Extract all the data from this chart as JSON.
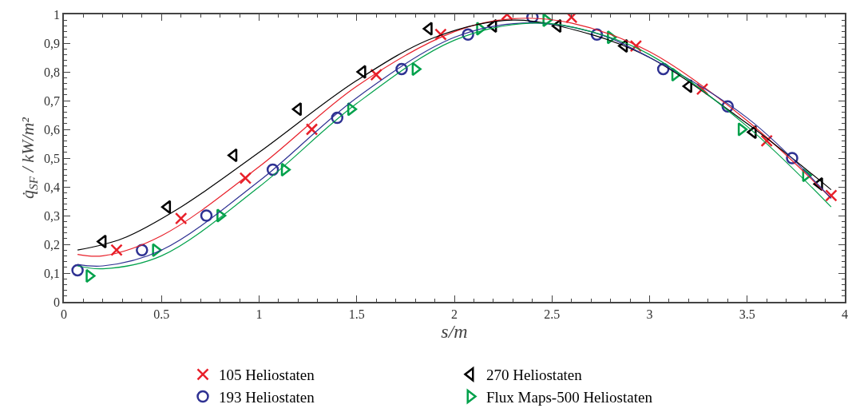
{
  "chart_data": {
    "type": "scatter",
    "xlabel": "s/m",
    "ylabel": "q̇$_{SF}$ / kW/m²",
    "xlim": [
      0,
      4
    ],
    "xticks": [
      0,
      0.5,
      1,
      1.5,
      2,
      2.5,
      3,
      3.5,
      4
    ],
    "ylim": [
      0,
      1
    ],
    "yticks": [
      0,
      {
        "value": 0.1,
        "label": "0,1"
      },
      {
        "value": 0.2,
        "label": "0,2"
      },
      {
        "value": 0.3,
        "label": "0,3"
      },
      {
        "value": 0.4,
        "label": "0,4"
      },
      {
        "value": 0.5,
        "label": "0,5"
      },
      {
        "value": 0.6,
        "label": "0,6"
      },
      {
        "value": 0.7,
        "label": "0,7"
      },
      {
        "value": 0.8,
        "label": "0,8"
      },
      {
        "value": 0.9,
        "label": "0,9"
      },
      1
    ],
    "legend": "bottom",
    "series": [
      {
        "name": "105 Heliostaten",
        "color": "#e8202a",
        "marker": "cross",
        "x": [
          0.27,
          0.6,
          0.93,
          1.27,
          1.6,
          1.93,
          2.27,
          2.6,
          2.93,
          3.27,
          3.6,
          3.93
        ],
        "values": [
          0.18,
          0.29,
          0.43,
          0.6,
          0.79,
          0.93,
          1.0,
          0.99,
          0.89,
          0.74,
          0.56,
          0.37
        ]
      },
      {
        "name": "270 Heliostaten",
        "color": "#000000",
        "marker": "triangle-left",
        "x": [
          0.2,
          0.53,
          0.87,
          1.2,
          1.53,
          1.87,
          2.2,
          2.53,
          2.87,
          3.2,
          3.53,
          3.87
        ],
        "values": [
          0.21,
          0.33,
          0.51,
          0.67,
          0.8,
          0.95,
          0.96,
          0.96,
          0.89,
          0.75,
          0.59,
          0.41
        ]
      },
      {
        "name": "193 Heliostaten",
        "color": "#2e3192",
        "marker": "circle",
        "x": [
          0.07,
          0.4,
          0.73,
          1.07,
          1.4,
          1.73,
          2.07,
          2.4,
          2.73,
          3.07,
          3.4,
          3.73
        ],
        "values": [
          0.11,
          0.18,
          0.3,
          0.46,
          0.64,
          0.81,
          0.93,
          0.99,
          0.93,
          0.81,
          0.68,
          0.5
        ]
      },
      {
        "name": "Flux Maps-500 Heliostaten",
        "color": "#00a14b",
        "marker": "triangle-right",
        "x": [
          0.13,
          0.47,
          0.8,
          1.13,
          1.47,
          1.8,
          2.13,
          2.47,
          2.8,
          3.13,
          3.47,
          3.8
        ],
        "values": [
          0.09,
          0.18,
          0.3,
          0.46,
          0.67,
          0.81,
          0.95,
          0.98,
          0.92,
          0.79,
          0.6,
          0.44
        ]
      },
      {
        "type": "line",
        "color": "#e8202a",
        "marker": "none",
        "x": [
          0.07,
          0.2,
          0.5,
          1,
          1.5,
          2,
          2.3,
          2.6,
          3,
          3.5,
          3.93
        ],
        "values": [
          0.165,
          0.16,
          0.23,
          0.47,
          0.75,
          0.94,
          0.985,
          0.97,
          0.87,
          0.63,
          0.36
        ]
      },
      {
        "type": "line",
        "color": "#000000",
        "marker": "none",
        "x": [
          0.07,
          0.3,
          0.6,
          1,
          1.5,
          1.9,
          2.3,
          2.7,
          3,
          3.5,
          3.93
        ],
        "values": [
          0.18,
          0.22,
          0.33,
          0.52,
          0.77,
          0.92,
          0.98,
          0.93,
          0.85,
          0.62,
          0.39
        ]
      },
      {
        "type": "line",
        "color": "#2e3192",
        "marker": "none",
        "x": [
          0.07,
          0.2,
          0.5,
          1,
          1.5,
          2,
          2.35,
          2.7,
          3,
          3.5,
          3.93
        ],
        "values": [
          0.13,
          0.125,
          0.18,
          0.42,
          0.71,
          0.92,
          0.97,
          0.94,
          0.85,
          0.64,
          0.36
        ]
      },
      {
        "type": "line",
        "color": "#00a14b",
        "marker": "none",
        "x": [
          0.07,
          0.2,
          0.5,
          1,
          1.5,
          2,
          2.4,
          2.7,
          3,
          3.5,
          3.93
        ],
        "values": [
          0.125,
          0.115,
          0.16,
          0.4,
          0.69,
          0.91,
          0.97,
          0.94,
          0.86,
          0.61,
          0.33
        ]
      }
    ]
  }
}
